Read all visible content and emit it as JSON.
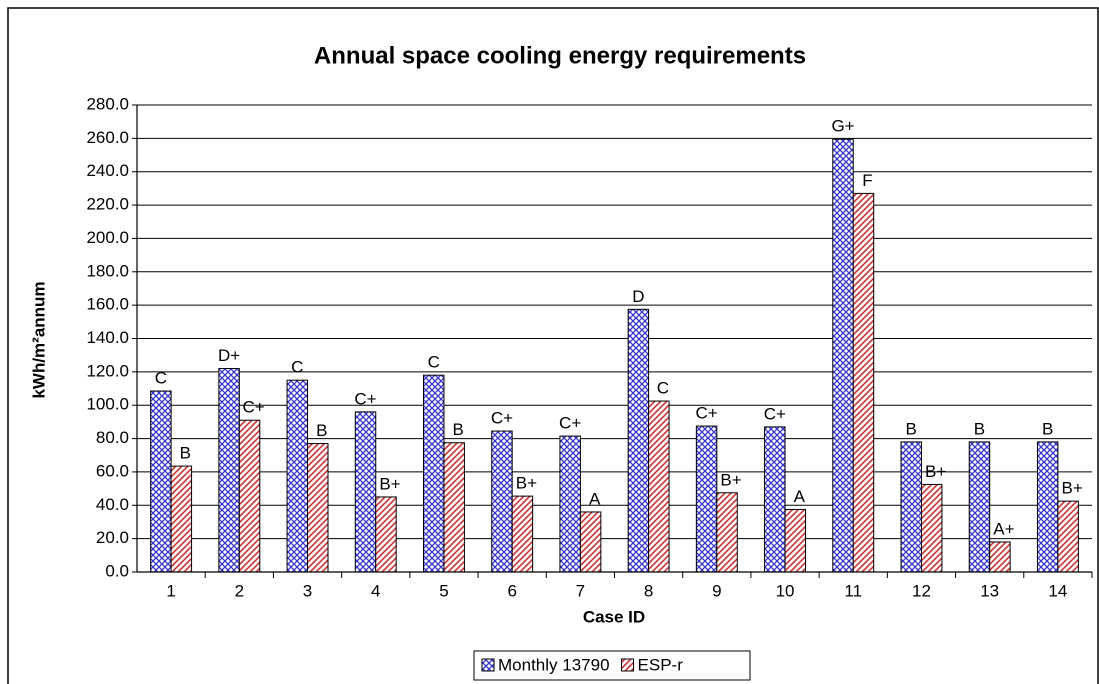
{
  "chart_data": {
    "type": "bar",
    "title": "Annual space cooling energy requirements",
    "x_label": "Case ID",
    "y_label": "kWh/m²annum",
    "categories": [
      "1",
      "2",
      "3",
      "4",
      "5",
      "6",
      "7",
      "8",
      "9",
      "10",
      "11",
      "12",
      "13",
      "14"
    ],
    "series": [
      {
        "name": "Monthly 13790",
        "color": "#3333cc",
        "pattern": "crosshatch",
        "values": [
          108.5,
          122,
          115,
          96,
          118,
          84.5,
          81.5,
          157.5,
          87.5,
          87,
          259.5,
          78,
          78,
          78
        ],
        "grades": [
          "C",
          "D+",
          "C",
          "C+",
          "C",
          "C+",
          "C+",
          "D",
          "C+",
          "C+",
          "G+",
          "B",
          "B",
          "B"
        ]
      },
      {
        "name": "ESP-r",
        "color": "#cc3333",
        "pattern": "diagonal",
        "values": [
          63.5,
          91,
          77,
          45,
          77.5,
          45.5,
          36,
          102.5,
          47.5,
          37.5,
          227,
          52.5,
          18,
          42.5
        ],
        "grades": [
          "B",
          "C+",
          "B",
          "B+",
          "B",
          "B+",
          "A",
          "C",
          "B+",
          "A",
          "F",
          "B+",
          "A+",
          "B+"
        ]
      }
    ],
    "ylim": [
      0,
      280
    ],
    "yticks": [
      {
        "value": 0,
        "label": "0.0"
      },
      {
        "value": 20,
        "label": "20.0"
      },
      {
        "value": 40,
        "label": "40.0"
      },
      {
        "value": 60,
        "label": "60.0"
      },
      {
        "value": 80,
        "label": "80.0"
      },
      {
        "value": 100,
        "label": "100.0"
      },
      {
        "value": 120,
        "label": "120.0"
      },
      {
        "value": 140,
        "label": "140.0"
      },
      {
        "value": 160,
        "label": "160.0"
      },
      {
        "value": 180,
        "label": "180.0"
      },
      {
        "value": 200,
        "label": "200.0"
      },
      {
        "value": 220,
        "label": "220.0"
      },
      {
        "value": 240,
        "label": "240.0"
      },
      {
        "value": 260,
        "label": "260.0"
      },
      {
        "value": 280,
        "label": "280.0"
      }
    ],
    "grid": true,
    "legend": "bottom"
  }
}
